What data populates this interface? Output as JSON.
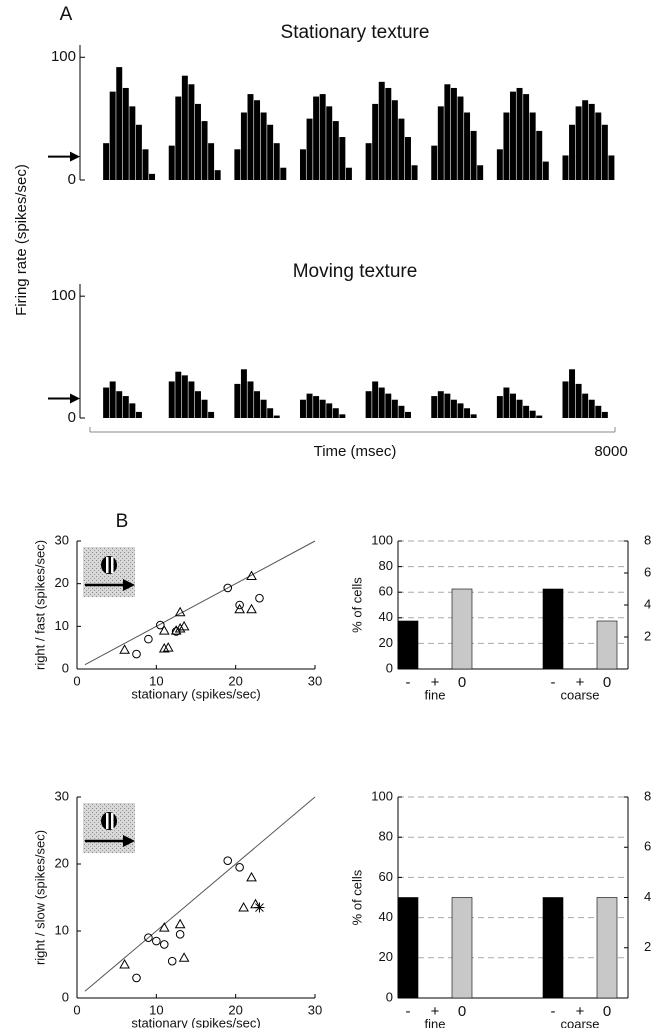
{
  "panel_labels": [
    "A",
    "B"
  ],
  "chart_data": [
    {
      "type": "histogram",
      "title": "Stationary texture",
      "ylabel": "Firing rate (spikes/sec)",
      "color": "#000000",
      "bins": [
        0,
        100,
        200,
        300,
        400,
        500,
        600,
        700,
        800,
        900,
        1000,
        1100,
        1200,
        1300,
        1400,
        1500,
        1600,
        1700,
        1800,
        1900,
        2000,
        2100,
        2200,
        2300,
        2400,
        2500,
        2600,
        2700,
        2800,
        2900,
        3000,
        3100,
        3200,
        3300,
        3400,
        3500,
        3600,
        3700,
        3800,
        3900,
        4000,
        4100,
        4200,
        4300,
        4400,
        4500,
        4600,
        4700,
        4800,
        4900,
        5000,
        5100,
        5200,
        5300,
        5400,
        5500,
        5600,
        5700,
        5800,
        5900,
        6000,
        6100,
        6200,
        6300,
        6400,
        6500,
        6600,
        6700,
        6800,
        6900,
        7000,
        7100,
        7200,
        7300,
        7400,
        7500,
        7600,
        7700,
        7800,
        7900,
        8000
      ],
      "values": [
        0,
        0,
        30,
        72,
        92,
        75,
        60,
        45,
        25,
        5,
        0,
        0,
        28,
        68,
        85,
        78,
        62,
        48,
        30,
        8,
        0,
        0,
        25,
        55,
        70,
        65,
        55,
        45,
        30,
        10,
        0,
        0,
        25,
        50,
        68,
        70,
        60,
        48,
        35,
        10,
        0,
        0,
        30,
        62,
        80,
        75,
        65,
        50,
        35,
        12,
        0,
        0,
        28,
        60,
        78,
        75,
        68,
        55,
        40,
        12,
        0,
        0,
        25,
        55,
        72,
        75,
        70,
        55,
        40,
        15,
        0,
        0,
        20,
        45,
        60,
        65,
        62,
        55,
        45,
        20
      ],
      "baseline": 19,
      "xlim": [
        0,
        8000
      ],
      "ylim": [
        0,
        110
      ],
      "yticks": [
        0,
        100
      ]
    },
    {
      "type": "histogram",
      "title": "Moving texture",
      "xlabel": "Time (msec)",
      "color": "#000000",
      "bins": [
        0,
        100,
        200,
        300,
        400,
        500,
        600,
        700,
        800,
        900,
        1000,
        1100,
        1200,
        1300,
        1400,
        1500,
        1600,
        1700,
        1800,
        1900,
        2000,
        2100,
        2200,
        2300,
        2400,
        2500,
        2600,
        2700,
        2800,
        2900,
        3000,
        3100,
        3200,
        3300,
        3400,
        3500,
        3600,
        3700,
        3800,
        3900,
        4000,
        4100,
        4200,
        4300,
        4400,
        4500,
        4600,
        4700,
        4800,
        4900,
        5000,
        5100,
        5200,
        5300,
        5400,
        5500,
        5600,
        5700,
        5800,
        5900,
        6000,
        6100,
        6200,
        6300,
        6400,
        6500,
        6600,
        6700,
        6800,
        6900,
        7000,
        7100,
        7200,
        7300,
        7400,
        7500,
        7600,
        7700,
        7800,
        7900,
        8000
      ],
      "values": [
        0,
        0,
        25,
        30,
        22,
        18,
        12,
        5,
        0,
        0,
        0,
        0,
        30,
        38,
        35,
        30,
        22,
        15,
        5,
        0,
        0,
        0,
        28,
        40,
        30,
        22,
        15,
        8,
        2,
        0,
        0,
        0,
        15,
        20,
        18,
        15,
        12,
        8,
        3,
        0,
        0,
        0,
        22,
        30,
        25,
        20,
        15,
        10,
        5,
        0,
        0,
        0,
        18,
        22,
        20,
        15,
        12,
        8,
        3,
        0,
        0,
        0,
        18,
        25,
        20,
        15,
        10,
        6,
        2,
        0,
        0,
        0,
        30,
        40,
        28,
        20,
        15,
        10,
        5,
        0
      ],
      "baseline": 16,
      "xlim": [
        0,
        8000
      ],
      "xticks": [
        8000
      ],
      "ylim": [
        0,
        110
      ],
      "yticks": [
        0,
        100
      ]
    },
    {
      "type": "scatter",
      "xlabel": "stationary (spikes/sec)",
      "ylabel": "right / fast (spikes/sec)",
      "xlim": [
        0,
        30
      ],
      "ylim": [
        0,
        30
      ],
      "xticks": [
        0,
        10,
        20,
        30
      ],
      "yticks": [
        0,
        10,
        20,
        30
      ],
      "series": [
        {
          "marker": "circle",
          "color": "#000000",
          "x": [
            10.5,
            9,
            7.5,
            19,
            20.5,
            23,
            12.5
          ],
          "values": [
            10.3,
            7,
            3.5,
            19,
            15,
            16.6,
            8.8
          ]
        },
        {
          "marker": "triangle",
          "color": "#000000",
          "x": [
            6,
            11,
            11,
            11.5,
            13,
            13,
            13.5,
            20.5,
            22,
            22,
            12.5
          ],
          "values": [
            4.5,
            9,
            4.8,
            5,
            13.3,
            9.5,
            10,
            14,
            14,
            21.8,
            9
          ]
        }
      ]
    },
    {
      "type": "scatter",
      "xlabel": "stationary (spikes/sec)",
      "ylabel": "right / slow (spikes/sec)",
      "xlim": [
        0,
        30
      ],
      "ylim": [
        0,
        30
      ],
      "xticks": [
        0,
        10,
        20,
        30
      ],
      "yticks": [
        0,
        10,
        20,
        30
      ],
      "series": [
        {
          "marker": "circle",
          "color": "#000000",
          "x": [
            9,
            10,
            11,
            12,
            13,
            7.5,
            19,
            20.5
          ],
          "values": [
            9,
            8.5,
            8,
            5.5,
            9.5,
            3,
            20.5,
            19.5
          ]
        },
        {
          "marker": "triangle",
          "color": "#000000",
          "x": [
            6,
            11,
            13,
            13.5,
            21,
            22,
            22.5
          ],
          "values": [
            5,
            10.5,
            11,
            6,
            13.5,
            18,
            14
          ]
        },
        {
          "marker": "star",
          "color": "#000000",
          "x": [
            23
          ],
          "values": [
            13.5
          ]
        }
      ]
    },
    {
      "type": "bar",
      "ylabel": "% of cells",
      "categories": [
        "-",
        "+",
        "0",
        "-",
        "+",
        "0"
      ],
      "groups": [
        "fine",
        "coarse"
      ],
      "values": [
        37.5,
        0,
        62.5,
        62.5,
        0,
        37.5
      ],
      "colors": [
        "#000000",
        "#000000",
        "#c8c8c8",
        "#000000",
        "#000000",
        "#c8c8c8"
      ],
      "ylim": [
        0,
        100
      ],
      "yticks": [
        0,
        20,
        40,
        60,
        80,
        100
      ],
      "y2lim": [
        0,
        8
      ],
      "y2ticks": [
        2,
        4,
        6,
        8
      ],
      "grid": true
    },
    {
      "type": "bar",
      "ylabel": "% of cells",
      "categories": [
        "-",
        "+",
        "0",
        "-",
        "+",
        "0"
      ],
      "groups": [
        "fine",
        "coarse"
      ],
      "values": [
        50,
        0,
        50,
        50,
        0,
        50
      ],
      "colors": [
        "#000000",
        "#000000",
        "#c8c8c8",
        "#000000",
        "#000000",
        "#c8c8c8"
      ],
      "ylim": [
        0,
        100
      ],
      "yticks": [
        0,
        20,
        40,
        60,
        80,
        100
      ],
      "y2lim": [
        0,
        8
      ],
      "y2ticks": [
        2,
        4,
        6,
        8
      ],
      "grid": true
    }
  ]
}
